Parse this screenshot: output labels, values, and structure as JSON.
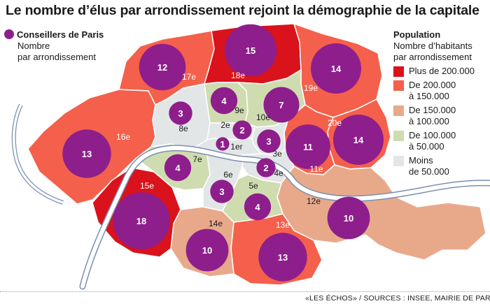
{
  "title": "Le nombre d’élus par arrondissement rejoint la démographie de la capitale",
  "legend_left": {
    "heading": "Conseillers de Paris",
    "sub_line1": "Nombre",
    "sub_line2": "par arrondissement"
  },
  "legend_right": {
    "heading": "Population",
    "sub_line1": "Nombre d’habitants",
    "sub_line2": "par arrondissement",
    "items": [
      {
        "line1": "Plus de 200.000",
        "line2": "",
        "color": "#d9121b"
      },
      {
        "line1": "De 200.000",
        "line2": "à 150.000",
        "color": "#f4604b"
      },
      {
        "line1": "De 150.000",
        "line2": "à 100.000",
        "color": "#e8a98b"
      },
      {
        "line1": "De 100.000",
        "line2": "à 50.000",
        "color": "#cfdcb0"
      },
      {
        "line1": "Moins",
        "line2": "de 50.000",
        "color": "#e3e6e7"
      }
    ]
  },
  "colors": {
    "bubble": "#8e1e8c",
    "river": "#ffffff",
    "river_edge": "#7a8fb0"
  },
  "arrondissements": [
    {
      "label": "1er",
      "councillors": 1
    },
    {
      "label": "2e",
      "councillors": 2
    },
    {
      "label": "3e",
      "councillors": 3
    },
    {
      "label": "4e",
      "councillors": 2
    },
    {
      "label": "5e",
      "councillors": 4
    },
    {
      "label": "6e",
      "councillors": 3
    },
    {
      "label": "7e",
      "councillors": 4
    },
    {
      "label": "8e",
      "councillors": 3
    },
    {
      "label": "9e",
      "councillors": 4
    },
    {
      "label": "10e",
      "councillors": 7
    },
    {
      "label": "11e",
      "councillors": 11
    },
    {
      "label": "12e",
      "councillors": 10
    },
    {
      "label": "13e",
      "councillors": 13
    },
    {
      "label": "14e",
      "councillors": 10
    },
    {
      "label": "15e",
      "councillors": 18
    },
    {
      "label": "16e",
      "councillors": 13
    },
    {
      "label": "17e",
      "councillors": 12
    },
    {
      "label": "18e",
      "councillors": 15
    },
    {
      "label": "19e",
      "councillors": 14
    },
    {
      "label": "20e",
      "councillors": 14
    }
  ],
  "source": "«LES ÉCHOS» / SOURCES : INSEE, MAIRIE DE PARIS"
}
